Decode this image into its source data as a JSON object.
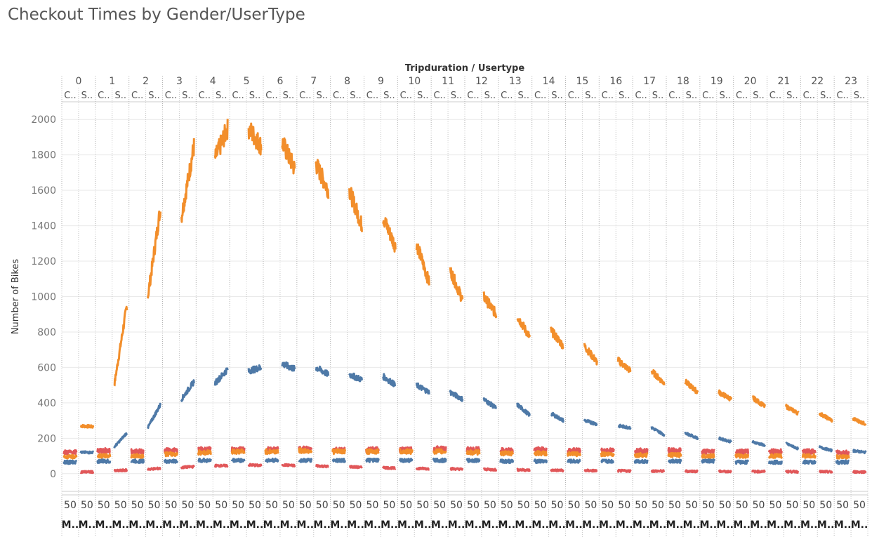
{
  "title": "Checkout Times by Gender/UserType",
  "colors": {
    "subscriber_unknown": "#F28E2B",
    "subscriber_male": "#4E79A7",
    "red_series": "#E15759",
    "customer_orange": "#F28E2B",
    "grid": "#e9e9e9",
    "axis_text": "#777777",
    "header_text": "#555555"
  },
  "chart_data": {
    "type": "line",
    "title": "Checkout Times by Gender/UserType",
    "top_header": "Tripduration / Usertype",
    "ylabel": "Number of Bikes",
    "ylim": [
      -100,
      2100
    ],
    "yticks": [
      0,
      200,
      400,
      600,
      800,
      1000,
      1200,
      1400,
      1600,
      1800,
      2000
    ],
    "hours": [
      "0",
      "1",
      "2",
      "3",
      "4",
      "5",
      "6",
      "7",
      "8",
      "9",
      "10",
      "11",
      "12",
      "13",
      "14",
      "15",
      "16",
      "17",
      "18",
      "19",
      "20",
      "21",
      "22",
      "23"
    ],
    "usertype_labels": [
      "C..",
      "S.."
    ],
    "bottom_label_1": "50",
    "bottom_label_2": "M..",
    "series": [
      {
        "usertype": "S..",
        "color": "#F28E2B",
        "start": [
          270,
          500,
          1000,
          1450,
          1780,
          1950,
          1870,
          1750,
          1600,
          1450,
          1300,
          1150,
          1000,
          890,
          810,
          720,
          640,
          580,
          520,
          460,
          430,
          380,
          340,
          310
        ],
        "end": [
          265,
          950,
          1500,
          1850,
          1950,
          1850,
          1720,
          1600,
          1400,
          1280,
          1080,
          980,
          900,
          770,
          720,
          630,
          580,
          510,
          460,
          420,
          380,
          340,
          300,
          280
        ]
      },
      {
        "usertype": "S..",
        "color": "#4E79A7",
        "start": [
          120,
          150,
          260,
          420,
          510,
          580,
          620,
          600,
          560,
          550,
          500,
          460,
          420,
          390,
          340,
          300,
          270,
          260,
          230,
          200,
          180,
          170,
          150,
          130
        ],
        "end": [
          120,
          230,
          390,
          520,
          590,
          600,
          590,
          560,
          530,
          500,
          460,
          420,
          370,
          330,
          300,
          280,
          260,
          220,
          200,
          180,
          160,
          140,
          130,
          120
        ]
      },
      {
        "usertype": "S..",
        "color": "#E15759",
        "start": [
          10,
          15,
          25,
          35,
          45,
          50,
          50,
          45,
          40,
          35,
          30,
          28,
          25,
          22,
          20,
          18,
          16,
          15,
          14,
          13,
          12,
          12,
          11,
          10
        ],
        "end": [
          10,
          20,
          30,
          40,
          45,
          45,
          45,
          40,
          35,
          30,
          28,
          25,
          22,
          20,
          18,
          16,
          15,
          14,
          13,
          12,
          12,
          11,
          10,
          10
        ]
      },
      {
        "usertype": "C..",
        "color": "#E15759",
        "level": [
          120,
          130,
          125,
          130,
          135,
          135,
          135,
          140,
          135,
          135,
          135,
          140,
          135,
          130,
          135,
          130,
          130,
          130,
          130,
          125,
          125,
          125,
          125,
          120
        ]
      },
      {
        "usertype": "C..",
        "color": "#F28E2B",
        "level": [
          95,
          100,
          100,
          110,
          120,
          125,
          125,
          130,
          125,
          125,
          125,
          125,
          120,
          115,
          115,
          110,
          110,
          105,
          105,
          100,
          100,
          100,
          100,
          95
        ]
      },
      {
        "usertype": "C..",
        "color": "#4E79A7",
        "level": [
          65,
          70,
          70,
          70,
          75,
          75,
          75,
          75,
          75,
          75,
          75,
          75,
          75,
          70,
          70,
          70,
          70,
          70,
          70,
          70,
          65,
          65,
          65,
          65
        ]
      }
    ]
  }
}
